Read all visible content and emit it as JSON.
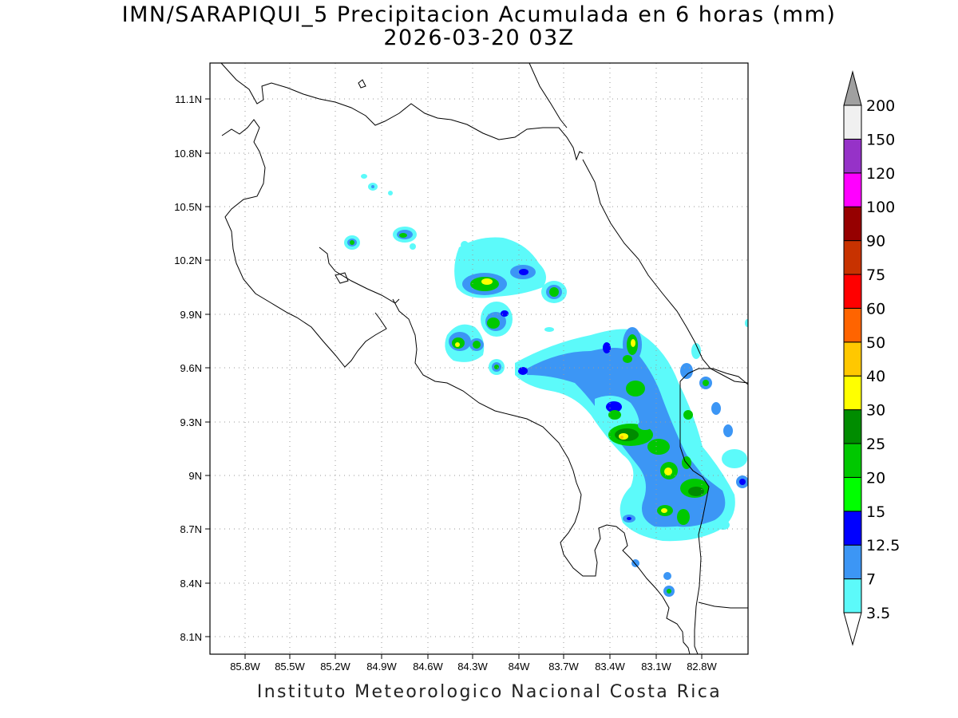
{
  "title": {
    "line1": "IMN/SARAPIQUI_5 Precipitacion Acumulada en 6 horas (mm)",
    "line2": "2026-03-20 03Z"
  },
  "footer": "Instituto Meteorologico Nacional Costa Rica",
  "map": {
    "lat_ticks": [
      "11.1N",
      "10.8N",
      "10.5N",
      "10.2N",
      "9.9N",
      "9.6N",
      "9.3N",
      "9N",
      "8.7N",
      "8.4N",
      "8.1N"
    ],
    "lon_ticks": [
      "85.8W",
      "85.5W",
      "85.2W",
      "84.9W",
      "84.6W",
      "84.3W",
      "84W",
      "83.7W",
      "83.4W",
      "83.1W",
      "82.8W"
    ],
    "grid": true
  },
  "colorbar": {
    "levels": [
      "3.5",
      "7",
      "12.5",
      "15",
      "20",
      "25",
      "30",
      "40",
      "50",
      "60",
      "75",
      "90",
      "100",
      "120",
      "150",
      "200"
    ],
    "colors": [
      "#5cfafa",
      "#3c96f5",
      "#0000ff",
      "#00ff00",
      "#00c800",
      "#008c00",
      "#ffff00",
      "#ffc800",
      "#ff6400",
      "#ff0000",
      "#c83200",
      "#960000",
      "#ff00ff",
      "#9632c8",
      "#f0f0f0",
      "#a0a0a0"
    ]
  }
}
